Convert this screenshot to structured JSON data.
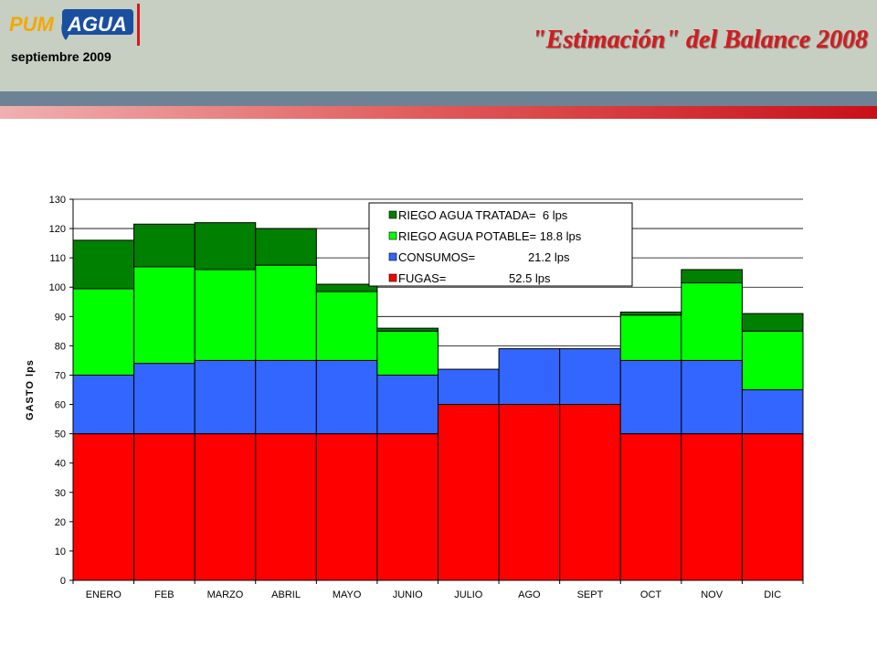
{
  "header": {
    "logo_text": "PUMAGUA",
    "subtitle": "septiembre 2009",
    "title": "\"Estimación\" del Balance 2008"
  },
  "colors": {
    "fugas": "#ff0000",
    "consumos": "#3366ff",
    "riego_potable": "#00ff00",
    "riego_tratada": "#008000"
  },
  "chart_data": {
    "type": "bar",
    "stacked": true,
    "categories": [
      "ENERO",
      "FEB",
      "MARZO",
      "ABRIL",
      "MAYO",
      "JUNIO",
      "JULIO",
      "AGO",
      "SEPT",
      "OCT",
      "NOV",
      "DIC"
    ],
    "series": [
      {
        "name": "FUGAS=                   52.5 lps",
        "color": "#ff0000",
        "values": [
          50,
          50,
          50,
          50,
          50,
          50,
          60,
          60,
          60,
          50,
          50,
          50
        ]
      },
      {
        "name": "CONSUMOS=                21.2 lps",
        "color": "#3366ff",
        "values": [
          20,
          24,
          25,
          25,
          25,
          20,
          12,
          19,
          19,
          25,
          25,
          15
        ]
      },
      {
        "name": "RIEGO AGUA POTABLE= 18.8 lps",
        "color": "#00ff00",
        "values": [
          29.5,
          33,
          31,
          32.5,
          23.5,
          15,
          0,
          0,
          0,
          15.5,
          26.5,
          20
        ]
      },
      {
        "name": "RIEGO AGUA TRATADA=  6 lps",
        "color": "#008000",
        "values": [
          16.5,
          14.5,
          16,
          12.5,
          2.5,
          1,
          0,
          0,
          0,
          1,
          4.5,
          6
        ]
      }
    ],
    "ylabel": "GASTO lps",
    "xlabel": "",
    "ylim": [
      0,
      130
    ],
    "yticks": [
      0,
      10,
      20,
      30,
      40,
      50,
      60,
      70,
      80,
      90,
      100,
      110,
      120,
      130
    ],
    "grid": true,
    "legend_position": "top-center"
  }
}
